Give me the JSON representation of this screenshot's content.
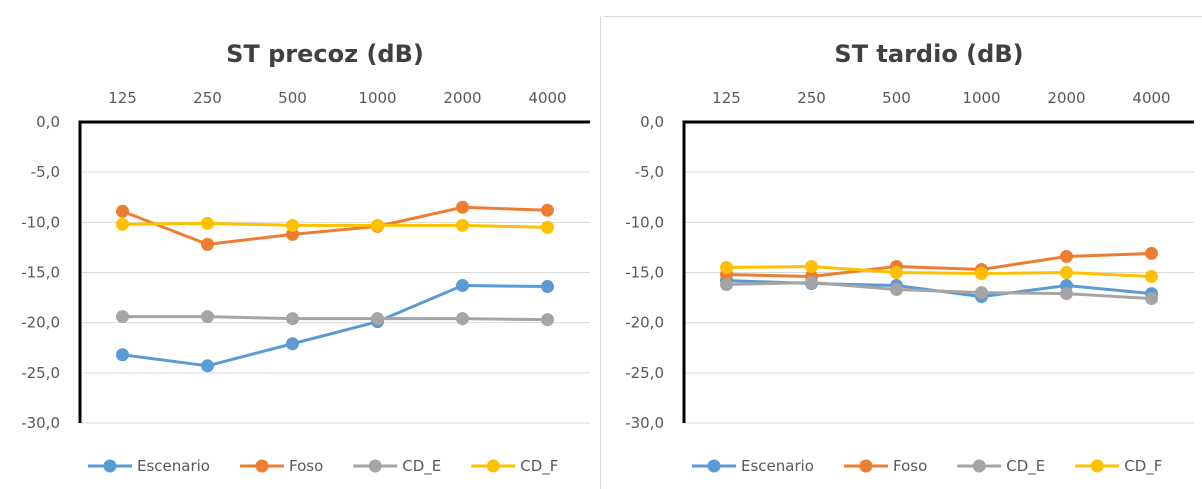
{
  "chart_data": [
    {
      "type": "line",
      "title": "ST precoz (dB)",
      "xlabel": "",
      "ylabel": "",
      "categories": [
        "125",
        "250",
        "500",
        "1000",
        "2000",
        "4000"
      ],
      "x_axis_position": "top",
      "ylim": [
        -30,
        0
      ],
      "yticks": [
        "0,0",
        "-5,0",
        "-10,0",
        "-15,0",
        "-20,0",
        "-25,0",
        "-30,0"
      ],
      "grid": true,
      "legend": "bottom",
      "series": [
        {
          "name": "Escenario",
          "color": "#5B9BD5",
          "values": [
            -23.2,
            -24.3,
            -22.1,
            -19.9,
            -16.3,
            -16.4
          ]
        },
        {
          "name": "Foso",
          "color": "#ED7D31",
          "values": [
            -8.9,
            -12.2,
            -11.2,
            -10.4,
            -8.5,
            -8.8
          ]
        },
        {
          "name": "CD_E",
          "color": "#A5A5A5",
          "values": [
            -19.4,
            -19.4,
            -19.6,
            -19.6,
            -19.6,
            -19.7
          ]
        },
        {
          "name": "CD_F",
          "color": "#FFC000",
          "values": [
            -10.2,
            -10.1,
            -10.3,
            -10.3,
            -10.3,
            -10.5
          ]
        }
      ]
    },
    {
      "type": "line",
      "title": "ST tardio (dB)",
      "xlabel": "",
      "ylabel": "",
      "categories": [
        "125",
        "250",
        "500",
        "1000",
        "2000",
        "4000"
      ],
      "x_axis_position": "top",
      "ylim": [
        -30,
        0
      ],
      "yticks": [
        "0,0",
        "-5,0",
        "-10,0",
        "-15,0",
        "-20,0",
        "-25,0",
        "-30,0"
      ],
      "grid": true,
      "legend": "bottom",
      "series": [
        {
          "name": "Escenario",
          "color": "#5B9BD5",
          "values": [
            -15.8,
            -16.1,
            -16.3,
            -17.4,
            -16.3,
            -17.1
          ]
        },
        {
          "name": "Foso",
          "color": "#ED7D31",
          "values": [
            -15.2,
            -15.4,
            -14.4,
            -14.7,
            -13.4,
            -13.1
          ]
        },
        {
          "name": "CD_E",
          "color": "#A5A5A5",
          "values": [
            -16.2,
            -16.0,
            -16.7,
            -17.0,
            -17.1,
            -17.6
          ]
        },
        {
          "name": "CD_F",
          "color": "#FFC000",
          "values": [
            -14.5,
            -14.4,
            -15.0,
            -15.1,
            -15.0,
            -15.4
          ]
        }
      ]
    }
  ]
}
